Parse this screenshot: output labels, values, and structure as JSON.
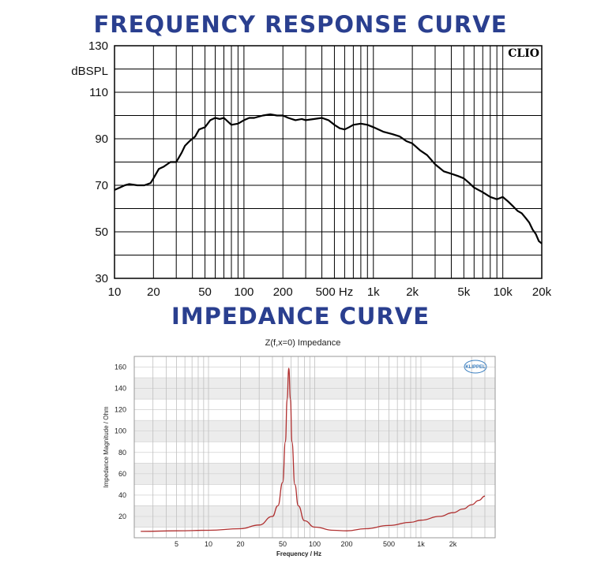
{
  "frequency_response": {
    "heading": "FREQUENCY RESPONSE CURVE",
    "brand": "CLIO"
  },
  "impedance": {
    "heading": "IMPEDANCE CURVE",
    "brand": "KLIPPEL"
  },
  "chart_data": [
    {
      "type": "line",
      "title": "",
      "xlabel": "",
      "ylabel": "dBSPL",
      "x_scale": "log",
      "xlim": [
        10,
        20000
      ],
      "ylim": [
        30,
        130
      ],
      "grid": true,
      "x_tick_labels": [
        {
          "value": 10,
          "label": "10"
        },
        {
          "value": 20,
          "label": "20"
        },
        {
          "value": 50,
          "label": "50"
        },
        {
          "value": 100,
          "label": "100"
        },
        {
          "value": 200,
          "label": "200"
        },
        {
          "value": 500,
          "label": "500 Hz"
        },
        {
          "value": 1000,
          "label": "1k"
        },
        {
          "value": 2000,
          "label": "2k"
        },
        {
          "value": 5000,
          "label": "5k"
        },
        {
          "value": 10000,
          "label": "10k"
        },
        {
          "value": 20000,
          "label": "20k"
        }
      ],
      "y_tick_labels": [
        {
          "value": 130,
          "label": "130"
        },
        {
          "value": 110,
          "label": "110"
        },
        {
          "value": 90,
          "label": "90"
        },
        {
          "value": 70,
          "label": "70"
        },
        {
          "value": 50,
          "label": "50"
        },
        {
          "value": 30,
          "label": "30"
        }
      ],
      "series": [
        {
          "color": "#000000",
          "x": [
            10,
            11,
            12,
            13,
            15,
            17,
            19,
            20,
            22,
            24,
            27,
            30,
            33,
            35,
            38,
            42,
            45,
            50,
            55,
            60,
            65,
            70,
            80,
            90,
            100,
            110,
            120,
            140,
            160,
            180,
            200,
            220,
            250,
            280,
            300,
            350,
            400,
            450,
            500,
            550,
            600,
            650,
            700,
            800,
            900,
            1000,
            1200,
            1400,
            1600,
            1800,
            2000,
            2300,
            2600,
            3000,
            3500,
            4000,
            4500,
            5000,
            5500,
            6000,
            7000,
            8000,
            9000,
            10000,
            11000,
            12000,
            13000,
            14000,
            15000,
            16000,
            17000,
            18000,
            19000,
            20000
          ],
          "y": [
            68,
            69,
            70,
            70.5,
            70,
            70,
            71,
            73,
            77,
            78,
            80,
            80,
            84,
            87,
            89,
            91,
            94,
            95,
            98,
            99,
            98.5,
            99,
            96,
            96.5,
            98,
            99,
            99,
            100,
            100.5,
            100,
            100,
            99,
            98,
            98.5,
            98,
            98.5,
            99,
            98,
            96,
            94.5,
            94,
            95,
            96,
            96.5,
            96,
            95,
            93,
            92,
            91,
            89,
            88,
            85,
            83,
            79,
            76,
            75,
            74,
            73,
            71,
            69,
            67,
            65,
            64,
            65,
            63,
            61,
            59,
            58,
            56,
            54,
            51,
            49,
            46,
            45
          ]
        }
      ]
    },
    {
      "type": "line",
      "title": "Z(f,x=0) Impedance",
      "xlabel": "Frequency / Hz",
      "ylabel": "Impedance Magnitude / Ohm",
      "x_scale": "log",
      "xlim": [
        2,
        5000
      ],
      "ylim": [
        0,
        170
      ],
      "grid": true,
      "x_tick_labels": [
        {
          "value": 5,
          "label": "5"
        },
        {
          "value": 10,
          "label": "10"
        },
        {
          "value": 20,
          "label": "20"
        },
        {
          "value": 50,
          "label": "50"
        },
        {
          "value": 100,
          "label": "100"
        },
        {
          "value": 200,
          "label": "200"
        },
        {
          "value": 500,
          "label": "500"
        },
        {
          "value": 1000,
          "label": "1k"
        },
        {
          "value": 2000,
          "label": "2k"
        }
      ],
      "y_tick_labels": [
        {
          "value": 160,
          "label": "160"
        },
        {
          "value": 140,
          "label": "140"
        },
        {
          "value": 120,
          "label": "120"
        },
        {
          "value": 100,
          "label": "100"
        },
        {
          "value": 80,
          "label": "80"
        },
        {
          "value": 60,
          "label": "60"
        },
        {
          "value": 40,
          "label": "40"
        },
        {
          "value": 20,
          "label": "20"
        }
      ],
      "series": [
        {
          "color": "#b03030",
          "resonance_hz": 57,
          "peak_ohm": 159,
          "x": [
            2.3,
            5,
            10,
            20,
            30,
            40,
            45,
            50,
            53,
            55,
            57,
            59,
            61,
            65,
            70,
            80,
            100,
            150,
            200,
            300,
            500,
            800,
            1000,
            1500,
            2000,
            2500,
            3000,
            3500,
            4000
          ],
          "y": [
            6,
            6.5,
            7,
            8.5,
            12,
            20,
            30,
            52,
            90,
            130,
            159,
            130,
            90,
            50,
            30,
            16,
            10,
            7,
            6.5,
            8.5,
            11.5,
            14.5,
            16.5,
            20,
            23.5,
            27,
            31,
            35,
            39
          ]
        }
      ]
    }
  ]
}
